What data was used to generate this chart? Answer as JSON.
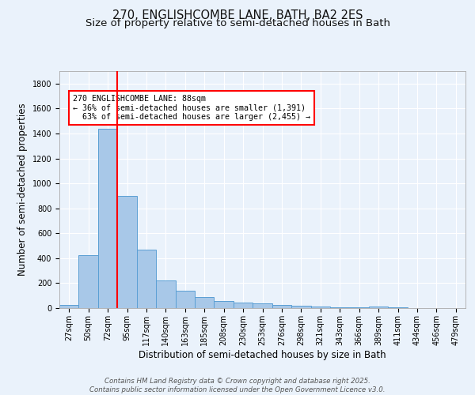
{
  "title_line1": "270, ENGLISHCOMBE LANE, BATH, BA2 2ES",
  "title_line2": "Size of property relative to semi-detached houses in Bath",
  "xlabel": "Distribution of semi-detached houses by size in Bath",
  "ylabel": "Number of semi-detached properties",
  "categories": [
    "27sqm",
    "50sqm",
    "72sqm",
    "95sqm",
    "117sqm",
    "140sqm",
    "163sqm",
    "185sqm",
    "208sqm",
    "230sqm",
    "253sqm",
    "276sqm",
    "298sqm",
    "321sqm",
    "343sqm",
    "366sqm",
    "389sqm",
    "411sqm",
    "434sqm",
    "456sqm",
    "479sqm"
  ],
  "values": [
    28,
    425,
    1440,
    900,
    470,
    220,
    140,
    90,
    58,
    45,
    35,
    28,
    20,
    12,
    8,
    5,
    15,
    8,
    3,
    3,
    2
  ],
  "bar_color": "#a8c8e8",
  "bar_edge_color": "#5a9fd4",
  "vline_x": 2.5,
  "vline_color": "red",
  "annotation_text": "270 ENGLISHCOMBE LANE: 88sqm\n← 36% of semi-detached houses are smaller (1,391)\n  63% of semi-detached houses are larger (2,455) →",
  "box_color": "white",
  "box_edge_color": "red",
  "ylim": [
    0,
    1900
  ],
  "yticks": [
    0,
    200,
    400,
    600,
    800,
    1000,
    1200,
    1400,
    1600,
    1800
  ],
  "background_color": "#eaf2fb",
  "plot_background": "#eaf2fb",
  "grid_color": "#ffffff",
  "footer_text": "Contains HM Land Registry data © Crown copyright and database right 2025.\nContains public sector information licensed under the Open Government Licence v3.0.",
  "title_fontsize": 10.5,
  "subtitle_fontsize": 9.5,
  "tick_fontsize": 7,
  "label_fontsize": 8.5,
  "footer_fontsize": 6.2
}
